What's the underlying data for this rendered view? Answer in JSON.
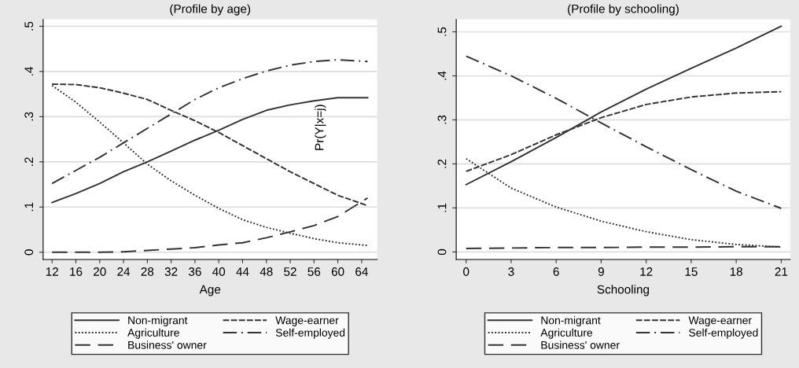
{
  "chart_data": [
    {
      "type": "line",
      "title": "(Profile by age)",
      "xlabel": "Age",
      "x": [
        12,
        16,
        20,
        24,
        28,
        32,
        36,
        40,
        44,
        48,
        52,
        56,
        60,
        65
      ],
      "xlim": [
        10.5,
        66.6
      ],
      "xticks": [
        12,
        16,
        20,
        24,
        28,
        32,
        36,
        40,
        44,
        48,
        52,
        56,
        60,
        64
      ],
      "ylim": [
        -0.016,
        0.515
      ],
      "yticks": [
        0,
        {
          "value": 0.1,
          "label": ".1"
        },
        {
          "value": 0.2,
          "label": ".2"
        },
        {
          "value": 0.3,
          "label": ".3"
        },
        {
          "value": 0.4,
          "label": ".4"
        },
        {
          "value": 0.5,
          "label": ".5"
        }
      ],
      "grid": "y",
      "legend": "bottom",
      "marker": "none",
      "annotations": [
        "Pr(Y|x=j)"
      ],
      "series": [
        {
          "name": "Non-migrant",
          "color": "#333333",
          "line_style": "solid",
          "values": [
            0.11,
            0.13,
            0.152,
            0.178,
            0.2,
            0.224,
            0.248,
            0.27,
            0.294,
            0.314,
            0.326,
            0.335,
            0.342,
            0.342
          ]
        },
        {
          "name": "Wage-earner",
          "color": "#333333",
          "line_style": "dashed",
          "values": [
            0.372,
            0.371,
            0.364,
            0.352,
            0.338,
            0.314,
            0.291,
            0.265,
            0.236,
            0.207,
            0.178,
            0.152,
            0.126,
            0.103
          ]
        },
        {
          "name": "Agriculture",
          "color": "#333333",
          "line_style": "dotted",
          "values": [
            0.369,
            0.332,
            0.288,
            0.242,
            0.195,
            0.158,
            0.126,
            0.097,
            0.072,
            0.055,
            0.042,
            0.03,
            0.021,
            0.015
          ]
        },
        {
          "name": "Self-employed",
          "color": "#333333",
          "line_style": "dashdot",
          "values": [
            0.152,
            0.181,
            0.21,
            0.242,
            0.274,
            0.306,
            0.338,
            0.364,
            0.384,
            0.401,
            0.414,
            0.422,
            0.426,
            0.422
          ]
        },
        {
          "name": "Business' owner",
          "color": "#333333",
          "line_style": "longdash",
          "values": [
            0.0,
            0.0,
            0.0,
            0.001,
            0.004,
            0.007,
            0.01,
            0.016,
            0.021,
            0.032,
            0.045,
            0.059,
            0.079,
            0.12
          ]
        }
      ]
    },
    {
      "type": "line",
      "title": "(Profile by schooling)",
      "xlabel": "Schooling",
      "x": [
        0,
        3,
        6,
        9,
        12,
        15,
        18,
        21
      ],
      "xlim": [
        -0.66,
        21.6
      ],
      "xticks": [
        0,
        3,
        6,
        9,
        12,
        15,
        18,
        21
      ],
      "ylim": [
        -0.017,
        0.528
      ],
      "yticks": [
        0,
        {
          "value": 0.1,
          "label": ".1"
        },
        {
          "value": 0.2,
          "label": ".2"
        },
        {
          "value": 0.3,
          "label": ".3"
        },
        {
          "value": 0.4,
          "label": ".4"
        },
        {
          "value": 0.5,
          "label": ".5"
        }
      ],
      "grid": "y",
      "legend": "bottom",
      "marker": "none",
      "series": [
        {
          "name": "Non-migrant",
          "color": "#333333",
          "line_style": "solid",
          "values": [
            0.153,
            0.205,
            0.26,
            0.318,
            0.37,
            0.417,
            0.463,
            0.513
          ]
        },
        {
          "name": "Wage-earner",
          "color": "#333333",
          "line_style": "dashed",
          "values": [
            0.183,
            0.221,
            0.266,
            0.305,
            0.335,
            0.352,
            0.361,
            0.364
          ]
        },
        {
          "name": "Agriculture",
          "color": "#333333",
          "line_style": "dotted",
          "values": [
            0.212,
            0.145,
            0.102,
            0.07,
            0.046,
            0.028,
            0.017,
            0.011
          ]
        },
        {
          "name": "Self-employed",
          "color": "#333333",
          "line_style": "dashdot",
          "values": [
            0.445,
            0.4,
            0.349,
            0.293,
            0.239,
            0.187,
            0.138,
            0.099
          ]
        },
        {
          "name": "Business' owner",
          "color": "#333333",
          "line_style": "longdash",
          "values": [
            0.008,
            0.009,
            0.01,
            0.01,
            0.011,
            0.011,
            0.012,
            0.012
          ]
        }
      ]
    }
  ]
}
